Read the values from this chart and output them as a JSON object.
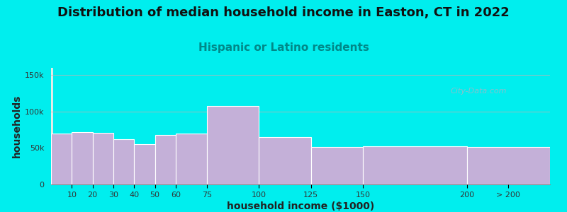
{
  "title": "Distribution of median household income in Easton, CT in 2022",
  "subtitle": "Hispanic or Latino residents",
  "xlabel": "household income ($1000)",
  "ylabel": "households",
  "background_color": "#00EEEE",
  "plot_bg_gradient_left": "#e6f5e0",
  "plot_bg_gradient_right": "#dde0f0",
  "bar_color": "#c4b0d8",
  "bar_edge_color": "#ffffff",
  "values": [
    70000,
    72000,
    71000,
    62000,
    55000,
    68000,
    70000,
    108000,
    65000,
    51000,
    52000,
    51000
  ],
  "ylim": [
    0,
    160000
  ],
  "yticks": [
    0,
    50000,
    100000,
    150000
  ],
  "ytick_labels": [
    "0",
    "50k",
    "100k",
    "150k"
  ],
  "title_fontsize": 13,
  "subtitle_fontsize": 11,
  "subtitle_color": "#008888",
  "title_color": "#111111",
  "axis_label_fontsize": 10,
  "tick_fontsize": 8,
  "watermark_text": "City-Data.com",
  "watermark_color": "#aab4c4",
  "grid_color": "#ddaaaa",
  "grid_alpha": 0.6,
  "edges": [
    0,
    10,
    20,
    30,
    40,
    50,
    60,
    75,
    100,
    125,
    150,
    200,
    240
  ],
  "xtick_labels": [
    "10",
    "20",
    "30",
    "40",
    "50",
    "60",
    "75",
    "100",
    "125",
    "150",
    "200",
    "> 200"
  ],
  "xtick_positions": [
    10,
    20,
    30,
    40,
    50,
    60,
    75,
    100,
    125,
    150,
    200,
    220
  ]
}
